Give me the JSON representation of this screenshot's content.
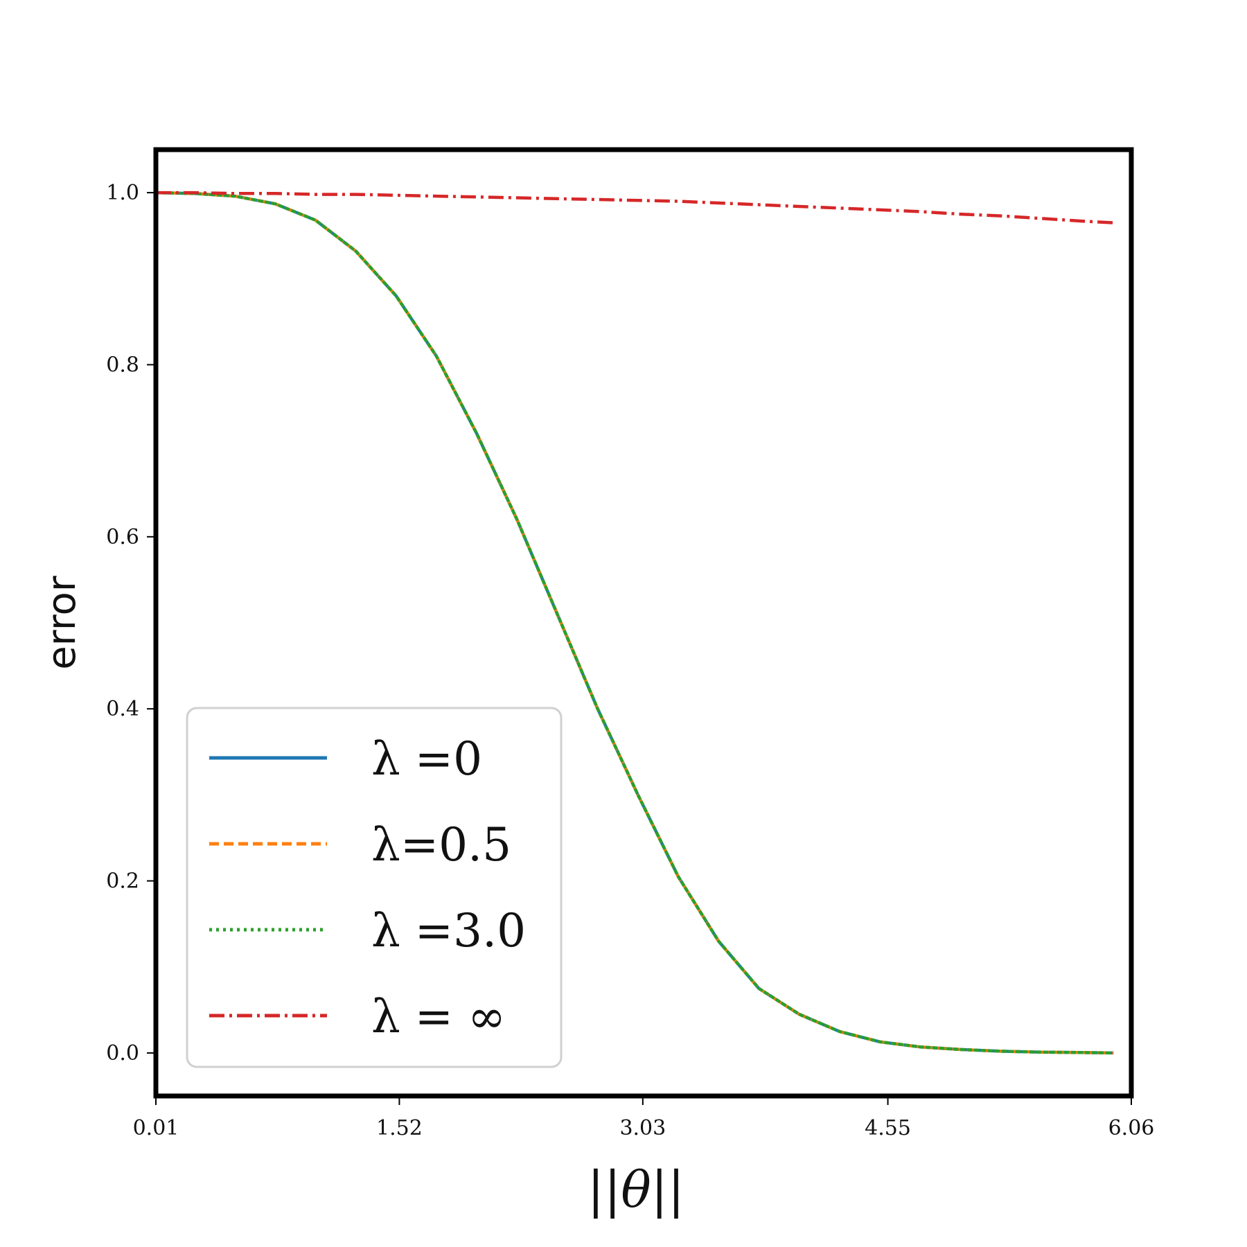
{
  "chart_data": {
    "type": "line",
    "xlabel": "||θ||",
    "ylabel": "error",
    "xlim": [
      0.01,
      6.06
    ],
    "ylim": [
      -0.05,
      1.05
    ],
    "xticks": [
      "0.01",
      "1.52",
      "3.03",
      "4.55",
      "6.06"
    ],
    "yticks": [
      "0.0",
      "0.2",
      "0.4",
      "0.6",
      "0.8",
      "1.0"
    ],
    "grid": false,
    "legend_position": "lower-left",
    "x": [
      0.01,
      0.25,
      0.5,
      0.75,
      1.0,
      1.25,
      1.5,
      1.75,
      2.0,
      2.25,
      2.5,
      2.75,
      3.0,
      3.25,
      3.5,
      3.75,
      4.0,
      4.25,
      4.5,
      4.75,
      5.0,
      5.25,
      5.5,
      5.75,
      5.95
    ],
    "series": [
      {
        "name": "λ =0",
        "color": "#1f77b4",
        "style": "solid",
        "values": [
          1.0,
          0.999,
          0.996,
          0.987,
          0.968,
          0.932,
          0.88,
          0.81,
          0.72,
          0.62,
          0.51,
          0.4,
          0.3,
          0.205,
          0.13,
          0.075,
          0.045,
          0.025,
          0.013,
          0.007,
          0.004,
          0.002,
          0.001,
          0.0005,
          0.0
        ]
      },
      {
        "name": "λ=0.5",
        "color": "#ff7f0e",
        "style": "dashed",
        "values": [
          1.0,
          0.999,
          0.996,
          0.987,
          0.968,
          0.932,
          0.88,
          0.81,
          0.72,
          0.62,
          0.51,
          0.4,
          0.3,
          0.205,
          0.13,
          0.075,
          0.045,
          0.025,
          0.013,
          0.007,
          0.004,
          0.002,
          0.001,
          0.0005,
          0.0
        ]
      },
      {
        "name": "λ =3.0",
        "color": "#2ca02c",
        "style": "dotted",
        "values": [
          1.0,
          0.999,
          0.996,
          0.987,
          0.968,
          0.932,
          0.88,
          0.81,
          0.72,
          0.62,
          0.51,
          0.4,
          0.3,
          0.205,
          0.13,
          0.075,
          0.045,
          0.025,
          0.013,
          0.007,
          0.004,
          0.002,
          0.001,
          0.0005,
          0.0
        ]
      },
      {
        "name": "λ = ∞",
        "color": "#d62728",
        "style": "dashdot",
        "values": [
          1.0,
          1.0,
          0.999,
          0.999,
          0.998,
          0.998,
          0.997,
          0.996,
          0.995,
          0.994,
          0.993,
          0.992,
          0.991,
          0.99,
          0.988,
          0.986,
          0.984,
          0.982,
          0.98,
          0.978,
          0.975,
          0.973,
          0.97,
          0.967,
          0.965
        ]
      }
    ]
  }
}
